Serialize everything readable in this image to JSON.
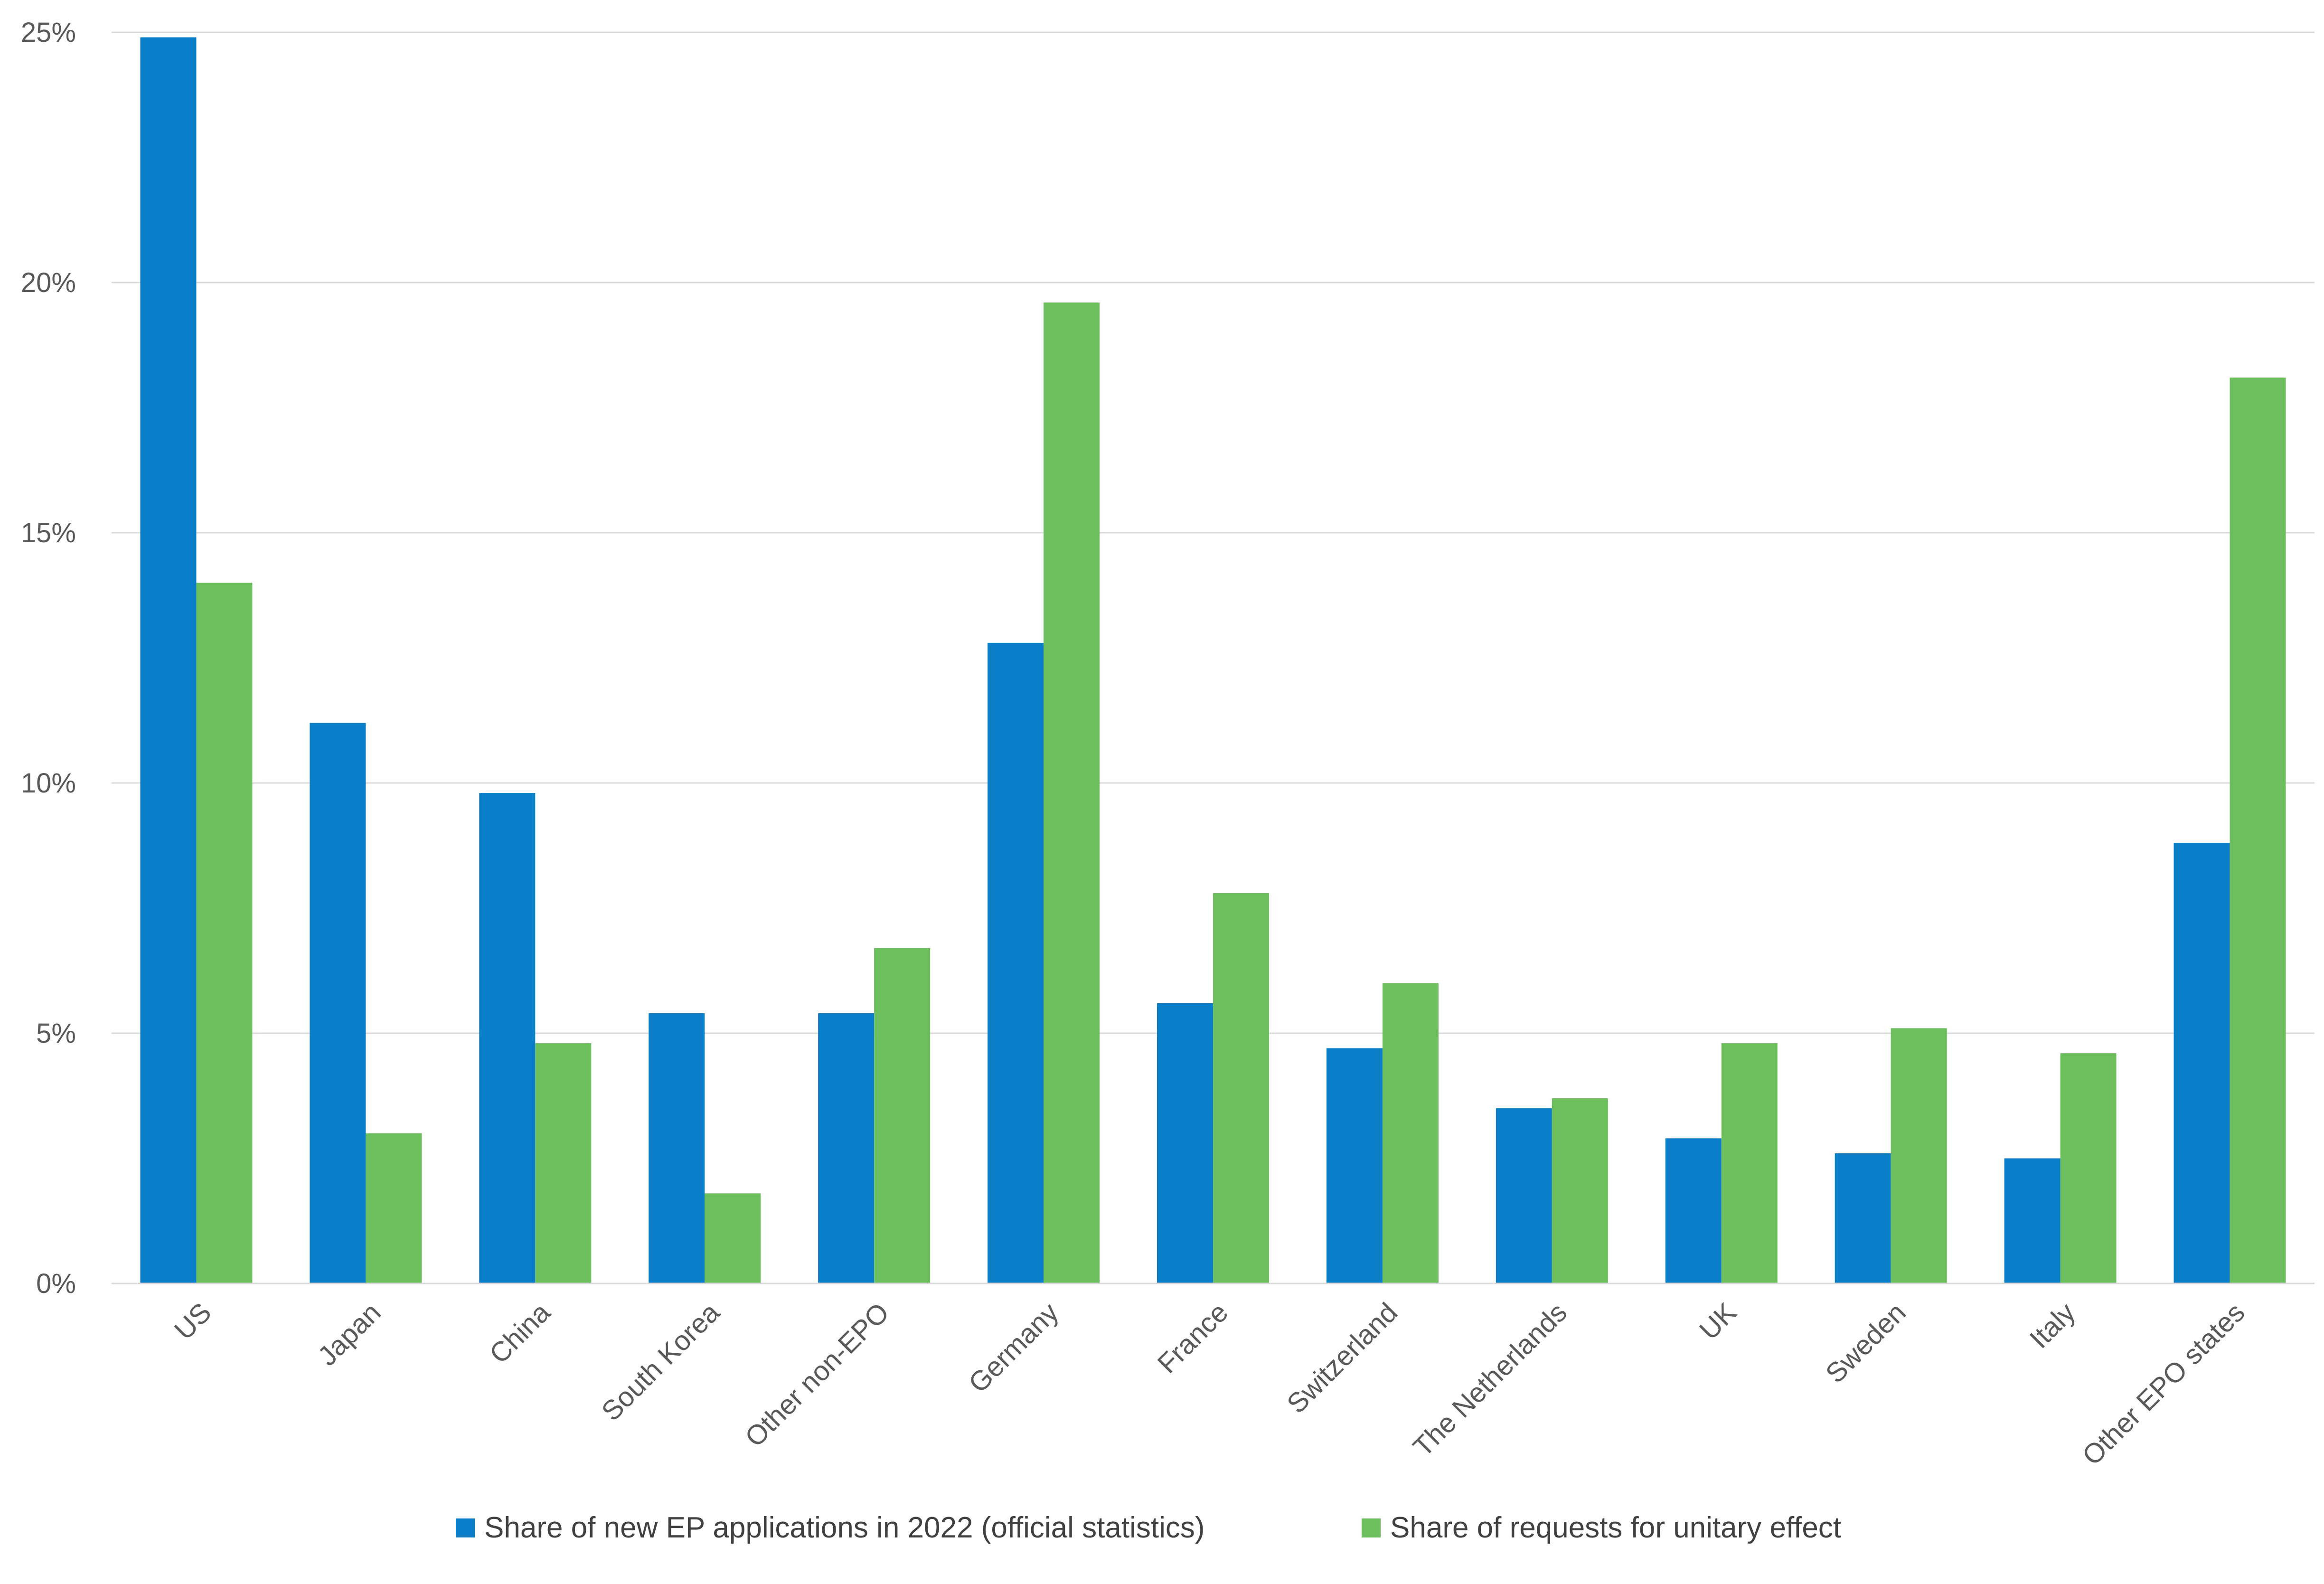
{
  "chart_data": {
    "type": "bar",
    "title": "",
    "xlabel": "",
    "ylabel": "",
    "ylim": [
      0,
      25
    ],
    "y_ticks": [
      "0%",
      "5%",
      "10%",
      "15%",
      "20%",
      "25%"
    ],
    "y_tick_values": [
      0,
      5,
      10,
      15,
      20,
      25
    ],
    "grid": true,
    "legend_position": "bottom",
    "categories": [
      "US",
      "Japan",
      "China",
      "South Korea",
      "Other non-EPO",
      "Germany",
      "France",
      "Switzerland",
      "The Netherlands",
      "UK",
      "Sweden",
      "Italy",
      "Other EPO states"
    ],
    "series": [
      {
        "name": "Share of new EP applications in 2022 (official statistics)",
        "color": "#0A7EC8",
        "values": [
          24.9,
          11.2,
          9.8,
          5.4,
          5.4,
          12.8,
          5.6,
          4.7,
          3.5,
          2.9,
          2.6,
          2.5,
          8.8
        ]
      },
      {
        "name": "Share of requests for unitary effect",
        "color": "#6DBF5E",
        "values": [
          14.0,
          3.0,
          4.8,
          1.8,
          6.7,
          19.6,
          7.8,
          6.0,
          3.7,
          4.8,
          5.1,
          4.6,
          18.1
        ]
      }
    ]
  }
}
